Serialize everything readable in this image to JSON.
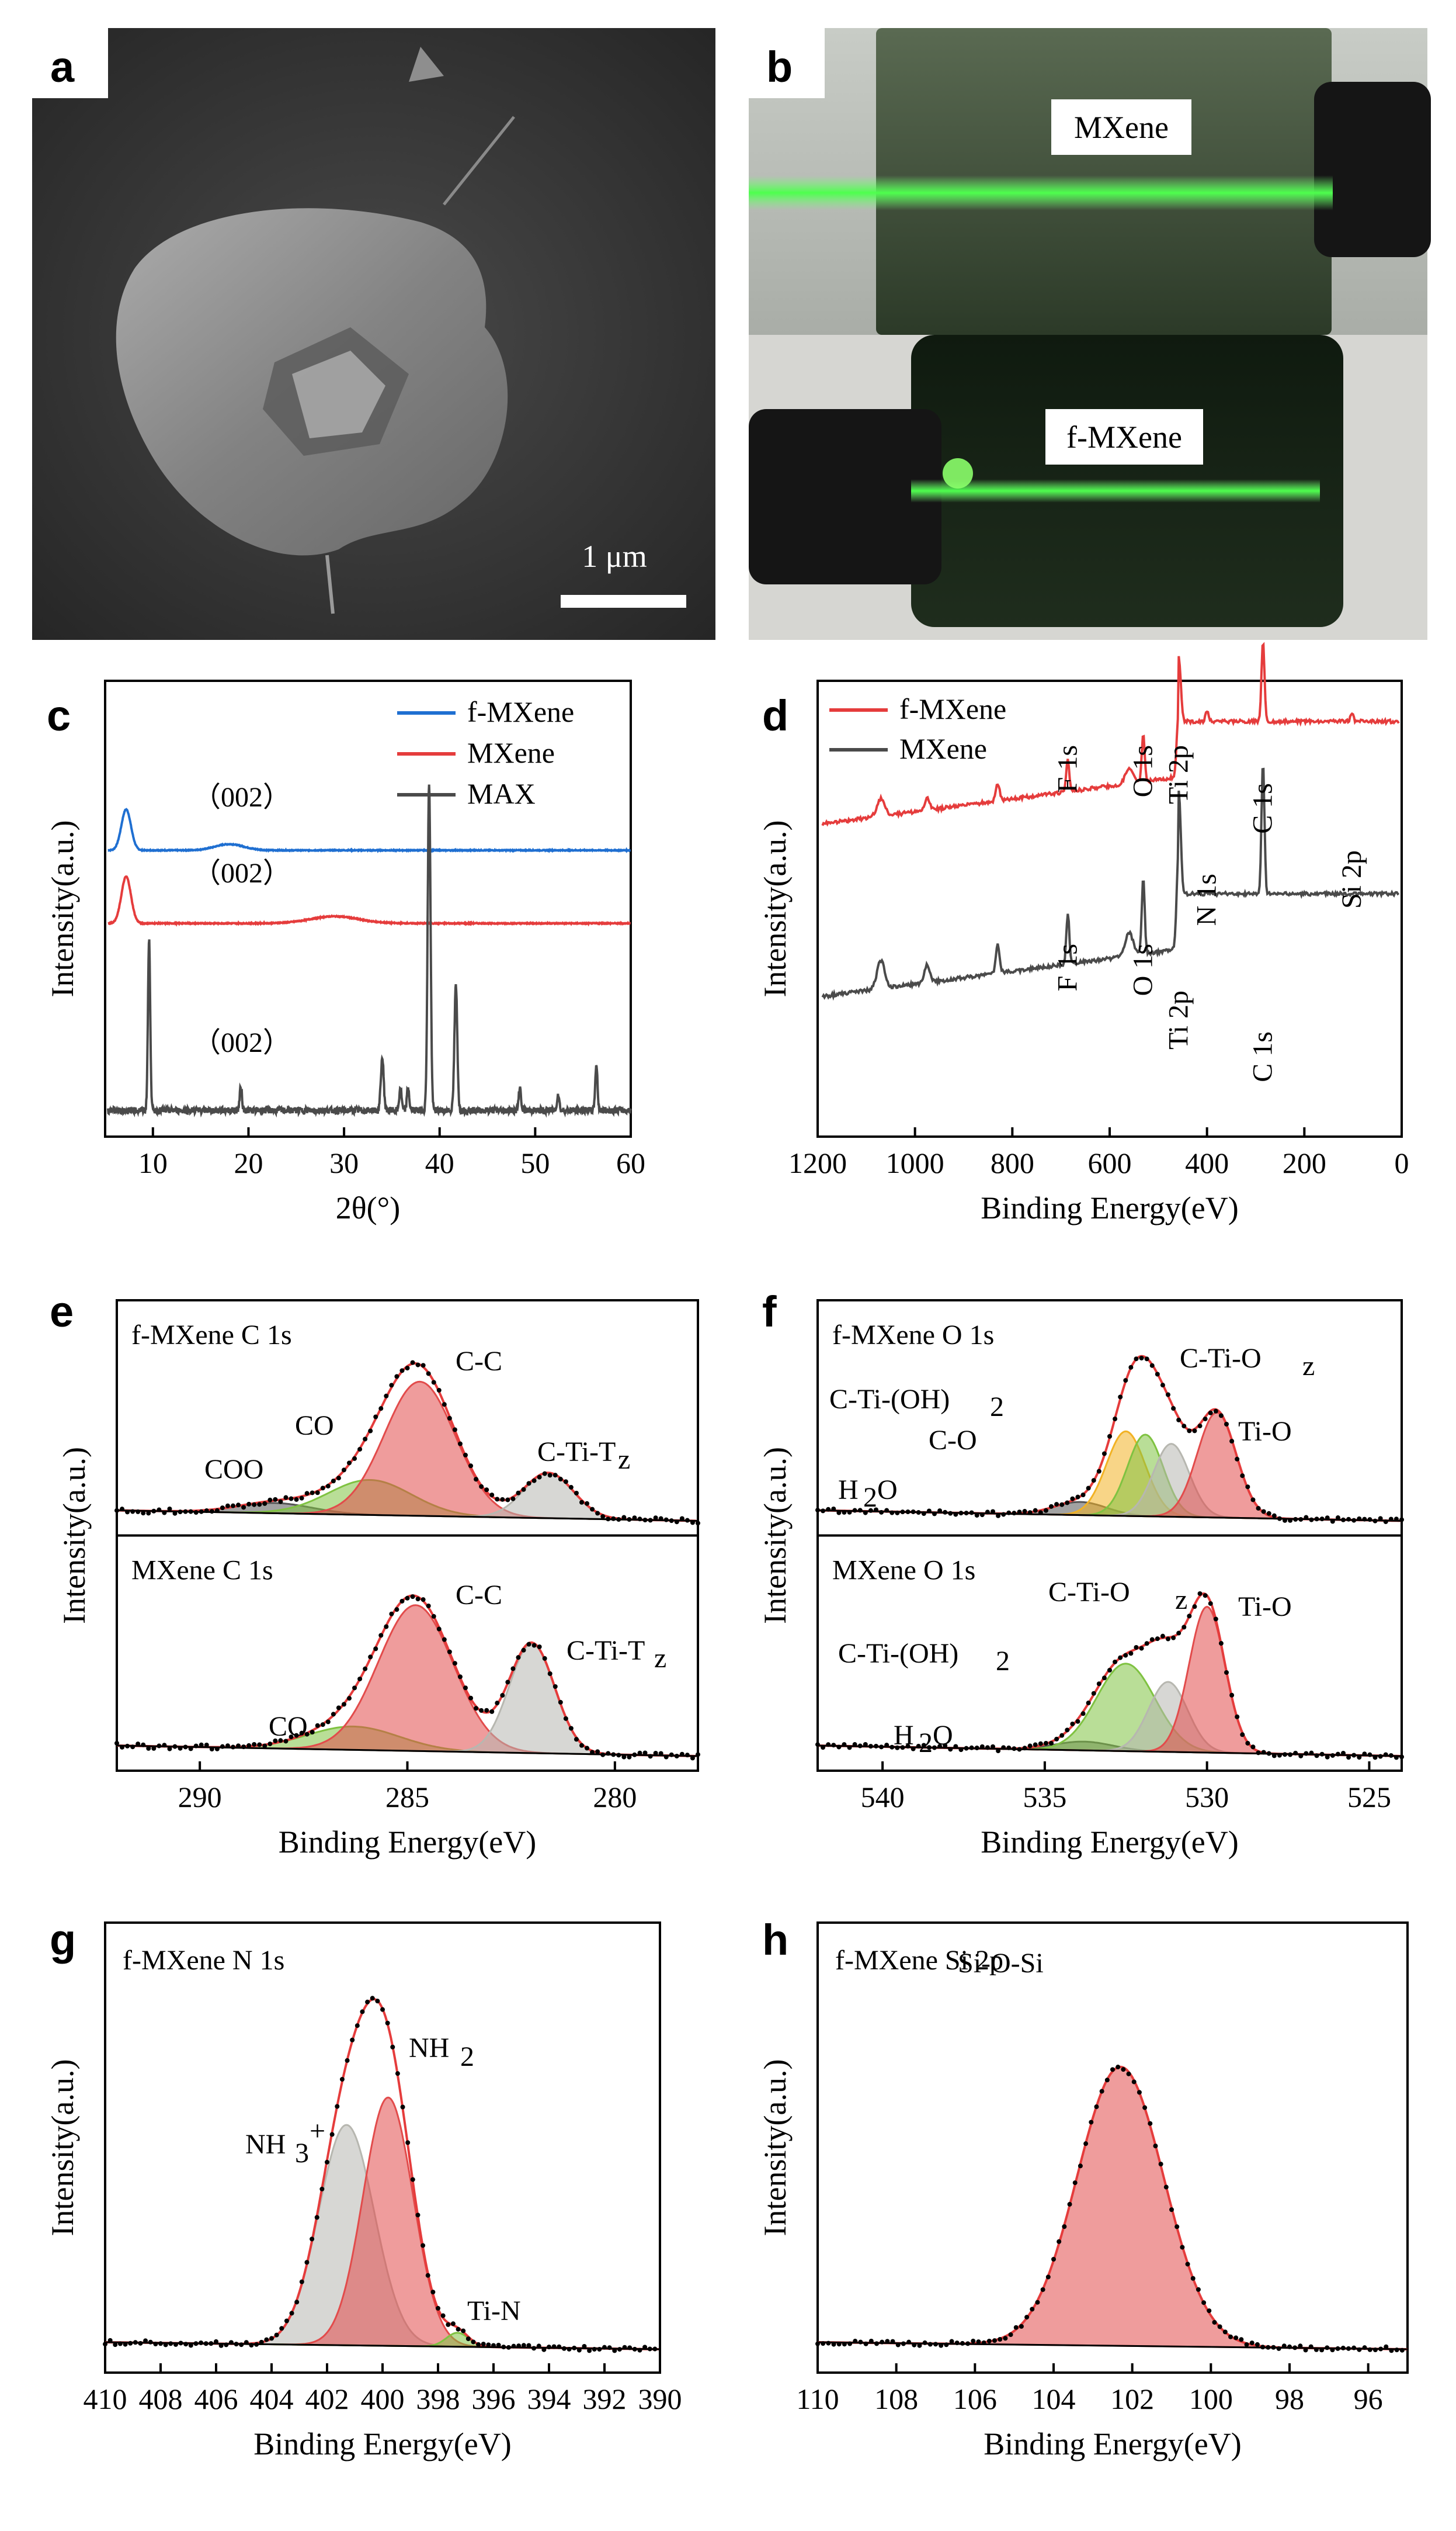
{
  "panel_a": {
    "label": "a",
    "scale_text": "1 μm"
  },
  "panel_b": {
    "label": "b",
    "top_label": "MXene",
    "bottom_label": "f-MXene"
  },
  "chart_data": [
    {
      "id": "c",
      "type": "line",
      "label": "c",
      "xlabel": "2θ(°)",
      "ylabel": "Intensity(a.u.)",
      "xlim": [
        5,
        60
      ],
      "xticks": [
        10,
        20,
        30,
        40,
        50,
        60
      ],
      "x_reversed": false,
      "series": [
        {
          "name": "f-MXene",
          "color": "#1f6fd1",
          "peaks": [
            [
              7.2,
              1.0,
              0.5
            ],
            [
              18,
              0.15,
              1.5
            ]
          ]
        },
        {
          "name": "MXene",
          "color": "#e53c3c",
          "peaks": [
            [
              7.2,
              1.0,
              0.5
            ],
            [
              29,
              0.15,
              2.5
            ]
          ]
        },
        {
          "name": "MAX",
          "color": "#4a4a4a",
          "peaks": [
            [
              9.6,
              0.52,
              0.12
            ],
            [
              19.2,
              0.07,
              0.12
            ],
            [
              34,
              0.16,
              0.15
            ],
            [
              35.9,
              0.07,
              0.12
            ],
            [
              36.7,
              0.07,
              0.12
            ],
            [
              38.9,
              1.0,
              0.15
            ],
            [
              41.7,
              0.38,
              0.15
            ],
            [
              48.4,
              0.07,
              0.12
            ],
            [
              52.4,
              0.05,
              0.12
            ],
            [
              56.4,
              0.14,
              0.12
            ]
          ]
        }
      ],
      "annotations": [
        "（002）",
        "（002）",
        "（002）"
      ]
    },
    {
      "id": "d",
      "type": "line",
      "label": "d",
      "xlabel": "Binding Energy(eV)",
      "ylabel": "Intensity(a.u.)",
      "xlim": [
        1200,
        0
      ],
      "xticks": [
        1200,
        1000,
        800,
        600,
        400,
        200,
        0
      ],
      "x_reversed": true,
      "series": [
        {
          "name": "f-MXene",
          "color": "#e53c3c"
        },
        {
          "name": "MXene",
          "color": "#4a4a4a"
        }
      ],
      "annotations": {
        "f-MXene": [
          "F 1s",
          "O 1s",
          "Ti 2p",
          "N 1s",
          "C 1s",
          "Si 2p"
        ],
        "MXene": [
          "F 1s",
          "O 1s",
          "Ti 2p",
          "C 1s"
        ]
      },
      "peaks_eV": {
        "F 1s": 686,
        "O 1s": 531,
        "Ti 2p": 458,
        "N 1s": 400,
        "C 1s": 285,
        "Si 2p": 102
      }
    },
    {
      "id": "e",
      "type": "area",
      "label": "e",
      "xlabel": "Binding Energy(eV)",
      "ylabel": "Intensity(a.u.)",
      "xlim": [
        292,
        278
      ],
      "xticks": [
        290,
        285,
        280
      ],
      "x_reversed": true,
      "subplots": [
        {
          "title": "f-MXene C 1s",
          "components": [
            {
              "name": "COO",
              "center": 288.2,
              "height": 0.07,
              "width": 0.9,
              "color": "#555555"
            },
            {
              "name": "CO",
              "center": 285.9,
              "height": 0.24,
              "width": 1.0,
              "color": "#7fc241"
            },
            {
              "name": "C-C",
              "center": 284.7,
              "height": 0.92,
              "width": 0.85,
              "color": "#e24b4b"
            },
            {
              "name": "C-Ti-Tz",
              "center": 281.6,
              "height": 0.31,
              "width": 0.6,
              "color": "#b7b7b0"
            }
          ],
          "labels": [
            "COO",
            "CO",
            "C-C",
            "C-Ti-T",
            "z"
          ]
        },
        {
          "title": "MXene C 1s",
          "components": [
            {
              "name": "CO",
              "center": 286.3,
              "height": 0.16,
              "width": 1.1,
              "color": "#7fc241"
            },
            {
              "name": "C-C",
              "center": 284.8,
              "height": 1.0,
              "width": 0.9,
              "color": "#e24b4b"
            },
            {
              "name": "C-Ti-Tz",
              "center": 282.0,
              "height": 0.75,
              "width": 0.55,
              "color": "#b7b7b0"
            }
          ],
          "labels": [
            "CO",
            "C-C",
            "C-Ti-T",
            "z"
          ]
        }
      ]
    },
    {
      "id": "f",
      "type": "area",
      "label": "f",
      "xlabel": "Binding Energy(eV)",
      "ylabel": "Intensity(a.u.)",
      "xlim": [
        542,
        524
      ],
      "xticks": [
        540,
        535,
        530,
        525
      ],
      "x_reversed": true,
      "subplots": [
        {
          "title": "f-MXene O 1s",
          "components": [
            {
              "name": "H2O",
              "center": 533.9,
              "height": 0.09,
              "width": 0.8,
              "color": "#555555"
            },
            {
              "name": "C-O",
              "center": 532.5,
              "height": 0.58,
              "width": 0.6,
              "color": "#f2b224"
            },
            {
              "name": "C-Ti-(OH)2",
              "center": 531.9,
              "height": 0.56,
              "width": 0.55,
              "color": "#7fc241"
            },
            {
              "name": "C-Ti-Oz",
              "center": 531.1,
              "height": 0.5,
              "width": 0.55,
              "color": "#b7b7b0"
            },
            {
              "name": "Ti-O",
              "center": 529.7,
              "height": 0.72,
              "width": 0.6,
              "color": "#e24b4b"
            }
          ],
          "labels": [
            "H",
            "2",
            "O",
            "C-O",
            "C-Ti-(OH)",
            "2",
            "C-Ti-O",
            "z",
            "Ti-O"
          ]
        },
        {
          "title": "MXene O 1s",
          "components": [
            {
              "name": "H2O",
              "center": 533.8,
              "height": 0.06,
              "width": 0.9,
              "color": "#555555"
            },
            {
              "name": "C-Ti-(OH)2",
              "center": 532.5,
              "height": 0.6,
              "width": 0.9,
              "color": "#7fc241"
            },
            {
              "name": "C-Ti-Oz",
              "center": 531.2,
              "height": 0.48,
              "width": 0.6,
              "color": "#b7b7b0"
            },
            {
              "name": "Ti-O",
              "center": 530.0,
              "height": 1.0,
              "width": 0.55,
              "color": "#e24b4b"
            }
          ],
          "labels": [
            "H",
            "2",
            "O",
            "C-Ti-(OH)",
            "2",
            "C-Ti-O",
            "z",
            "Ti-O"
          ]
        }
      ]
    },
    {
      "id": "g",
      "type": "area",
      "label": "g",
      "title": "f-MXene N 1s",
      "xlabel": "Binding Energy(eV)",
      "ylabel": "Intensity(a.u.)",
      "xlim": [
        410,
        390
      ],
      "xticks": [
        410,
        408,
        406,
        404,
        402,
        400,
        398,
        396,
        394,
        392,
        390
      ],
      "x_reversed": true,
      "components": [
        {
          "name": "NH3+",
          "center": 401.3,
          "height": 0.79,
          "width": 1.0,
          "color": "#b7b7b0"
        },
        {
          "name": "NH2",
          "center": 399.8,
          "height": 0.89,
          "width": 0.9,
          "color": "#e24b4b"
        },
        {
          "name": "Ti-N",
          "center": 397.3,
          "height": 0.05,
          "width": 0.4,
          "color": "#7fc241"
        }
      ],
      "labels": [
        "NH",
        "3",
        "+",
        "NH",
        "2",
        "Ti-N"
      ]
    },
    {
      "id": "h",
      "type": "area",
      "label": "h",
      "title": "f-MXene Si 2p",
      "xlabel": "Binding Energy(eV)",
      "ylabel": "Intensity(a.u.)",
      "xlim": [
        110,
        95
      ],
      "xticks": [
        110,
        108,
        106,
        104,
        102,
        100,
        98,
        96
      ],
      "x_reversed": true,
      "components": [
        {
          "name": "Si-O-Si",
          "center": 102.3,
          "height": 1.0,
          "width": 1.1,
          "color": "#e24b4b"
        }
      ],
      "labels": [
        "Si-O-Si"
      ]
    }
  ]
}
